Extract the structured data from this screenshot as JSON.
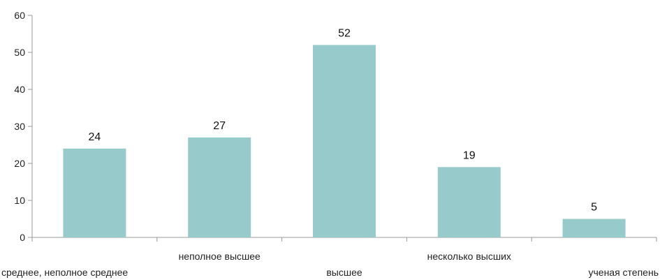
{
  "chart_data": {
    "type": "bar",
    "categories": [
      "среднее, неполное среднее",
      "неполное высшее",
      "высшее",
      "несколько высших",
      "ученая степень"
    ],
    "values": [
      24,
      27,
      52,
      19,
      5
    ],
    "data_labels": [
      "24",
      "27",
      "52",
      "19",
      "5"
    ],
    "y_ticks": [
      "0",
      "10",
      "20",
      "30",
      "40",
      "50",
      "60"
    ],
    "ylim": [
      0,
      60
    ],
    "grid": false,
    "legend": "none",
    "bar_color": "#97cbcb",
    "axis_color": "#9a9a9a"
  }
}
